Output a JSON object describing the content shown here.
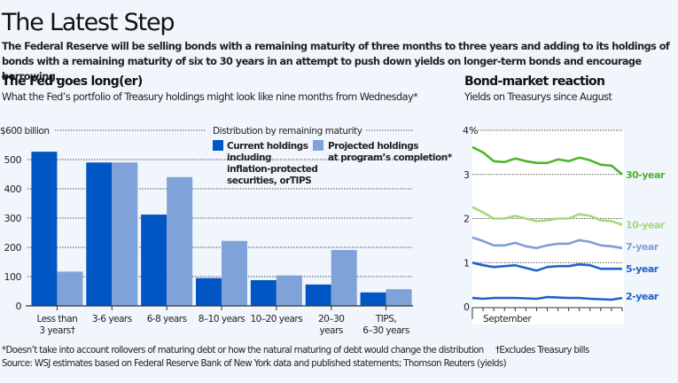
{
  "header": {
    "title": "The Latest Step",
    "intro": "The Federal Reserve will be selling bonds with a remaining maturity of three months to three years and adding to its holdings of bonds with a remaining maturity of six to 30 years in an attempt to push down yields on longer-term bonds and encourage borrowing."
  },
  "left_panel": {
    "title": "The Fed goes long(er)",
    "subtitle": "What the Fed’s portfolio of Treasury holdings might look like nine months from Wednesday*"
  },
  "right_panel": {
    "title": "Bond-market reaction",
    "subtitle": "Yields on Treasurys since August"
  },
  "colors": {
    "current": "#0057c4",
    "projected": "#7fa3d8",
    "y30": "#4db52a",
    "y10": "#a3d977",
    "y7": "#7f9fd8",
    "y5": "#1d63c8",
    "y2": "#1d63c8",
    "background": "#f1f5fc"
  },
  "footer": {
    "footnote": "*Doesn’t take into account rollovers of maturing debt or how the natural maturing of debt would change the distribution     †Excludes Treasury bills",
    "source": "Source: WSJ estimates based on Federal Reserve Bank of New York data and published statements; Thomson Reuters (yields)"
  },
  "chart_data": [
    {
      "type": "bar",
      "title": "The Fed goes long(er)",
      "ylabel": "$ billion",
      "ylim": [
        0,
        600
      ],
      "yticks": [
        0,
        100,
        200,
        300,
        400,
        500,
        600
      ],
      "ytick_labels": [
        "0",
        "100",
        "200",
        "300",
        "400",
        "500",
        "$600 billion"
      ],
      "grid": true,
      "legend_title": "Distribution by remaining maturity",
      "legend_position": "top-right",
      "categories": [
        [
          "Less than",
          "3 years†"
        ],
        [
          "3-6 years"
        ],
        [
          "6-8 years"
        ],
        [
          "8–10 years"
        ],
        [
          "10–20 years"
        ],
        [
          "20–30",
          "years"
        ],
        [
          "TIPS,",
          "6–30 years"
        ]
      ],
      "series": [
        {
          "name": "Current holdings including inflation-protected securities, orTIPS",
          "legend_lines": [
            "Current holdings",
            "including",
            "inflation-protected",
            "securities, orTIPS"
          ],
          "values": [
            527,
            490,
            312,
            95,
            88,
            73,
            46
          ]
        },
        {
          "name": "Projected holdings at program’s completion*",
          "legend_lines": [
            "Projected holdings",
            "at program’s completion*"
          ],
          "values": [
            117,
            490,
            440,
            222,
            104,
            191,
            57
          ]
        }
      ]
    },
    {
      "type": "line",
      "title": "Bond-market reaction",
      "subtitle": "Yields on Treasurys since August",
      "ylim": [
        0,
        4
      ],
      "yticks": [
        0,
        1,
        2,
        3,
        4
      ],
      "ytick_labels": [
        "0",
        "1",
        "2",
        "3",
        "4%"
      ],
      "x_label": "September",
      "grid": true,
      "n_points": 15,
      "series": [
        {
          "name": "30-year",
          "values": [
            3.62,
            3.5,
            3.3,
            3.28,
            3.36,
            3.3,
            3.26,
            3.26,
            3.34,
            3.3,
            3.38,
            3.32,
            3.22,
            3.2,
            3.0
          ]
        },
        {
          "name": "10-year",
          "values": [
            2.26,
            2.14,
            2.0,
            2.0,
            2.06,
            2.0,
            1.94,
            1.96,
            2.0,
            2.0,
            2.1,
            2.06,
            1.96,
            1.94,
            1.86
          ]
        },
        {
          "name": "7-year",
          "values": [
            1.57,
            1.49,
            1.39,
            1.39,
            1.45,
            1.37,
            1.33,
            1.39,
            1.43,
            1.43,
            1.51,
            1.47,
            1.39,
            1.37,
            1.33
          ]
        },
        {
          "name": "5-year",
          "values": [
            1.0,
            0.94,
            0.9,
            0.92,
            0.94,
            0.88,
            0.82,
            0.9,
            0.92,
            0.92,
            0.96,
            0.94,
            0.86,
            0.86,
            0.86
          ]
        },
        {
          "name": "2-year",
          "values": [
            0.2,
            0.18,
            0.2,
            0.2,
            0.2,
            0.19,
            0.18,
            0.22,
            0.21,
            0.2,
            0.2,
            0.18,
            0.17,
            0.16,
            0.2
          ]
        }
      ]
    }
  ]
}
